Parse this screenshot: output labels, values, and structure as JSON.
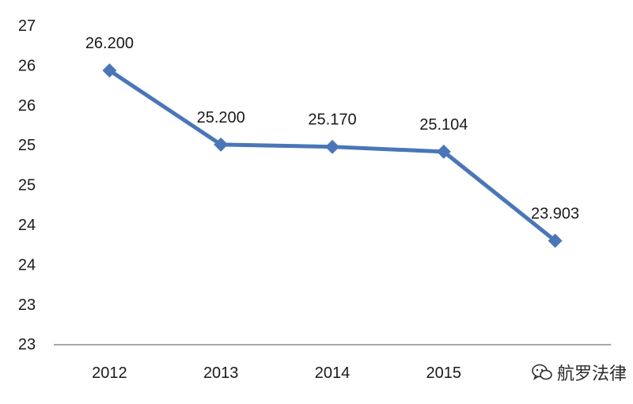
{
  "chart_data": {
    "type": "line",
    "title": "",
    "xlabel": "",
    "ylabel": "",
    "categories": [
      "2012",
      "2013",
      "2014",
      "2015",
      ""
    ],
    "series": [
      {
        "values": [
          26.2,
          25.2,
          25.17,
          25.104,
          23.903
        ],
        "color": "#4a76b8",
        "marker": "diamond"
      }
    ],
    "data_labels": [
      "26.200",
      "25.200",
      "25.170",
      "25.104",
      "23.903"
    ],
    "y_tick_labels": [
      "27",
      "26",
      "26",
      "25",
      "25",
      "24",
      "24",
      "23",
      "23"
    ],
    "ylim": [
      22.5,
      26.5
    ],
    "grid": false
  },
  "watermark": {
    "text": "航罗法律",
    "icon": "wechat-icon"
  }
}
